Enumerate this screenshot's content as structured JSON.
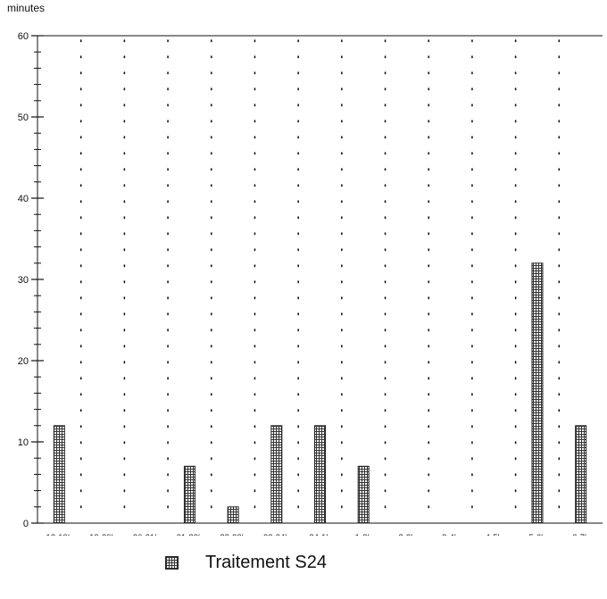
{
  "chart_data": {
    "type": "bar",
    "ylabel": "minutes",
    "ylim": [
      0,
      60
    ],
    "yticks": [
      0,
      10,
      20,
      30,
      40,
      50,
      60
    ],
    "grid": "dotted vertical",
    "legend_position": "bottom-center",
    "categories": [
      "18-19h",
      "19-20h",
      "20-21h",
      "21-22h",
      "22-23h",
      "23-24h",
      "24-1h",
      "1-2h",
      "2-3h",
      "3-4h",
      "4-5h",
      "5-6h",
      "6-7h"
    ],
    "series": [
      {
        "name": "Traitement S24",
        "values": [
          12,
          0,
          0,
          7,
          2,
          12,
          12,
          7,
          0,
          0,
          0,
          32,
          12
        ]
      }
    ]
  },
  "colors": {
    "bar_pattern": "#333333",
    "background": "#ffffff",
    "axis": "#111111"
  }
}
